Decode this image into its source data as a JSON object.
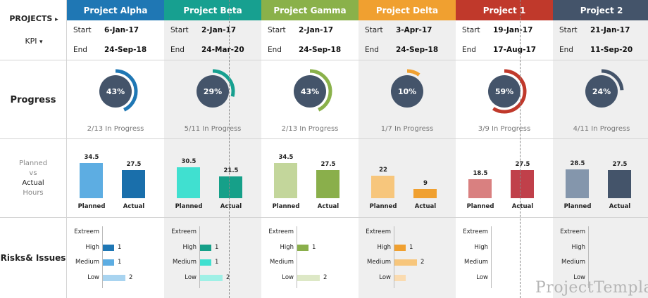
{
  "nav": {
    "projects_label": "PROJECTS",
    "projects_arrow": "▸",
    "kpi_label": "KPI",
    "kpi_arrow": "▾"
  },
  "rows": {
    "progress": "Progress",
    "hours": {
      "planned": "Planned",
      "vs": "vs",
      "actual": "Actual",
      "hours": "Hours"
    },
    "risks": "Risks& Issues"
  },
  "date_labels": {
    "start": "Start",
    "end": "End"
  },
  "bar_labels": {
    "planned": "Planned",
    "actual": "Actual"
  },
  "risk_levels": [
    "Extreem",
    "High",
    "Medium",
    "Low"
  ],
  "projects": [
    {
      "name": "Project Alpha",
      "color": "#1f77b4",
      "light": "#5dade2",
      "dark": "#1a6fab",
      "start": "6-Jan-17",
      "end": "24-Sep-18",
      "percent": 0.43,
      "percent_label": "43%",
      "progress_text": "2/13 In Progress",
      "planned": 34.5,
      "planned_label": "34.5",
      "actual": 27.5,
      "actual_label": "27.5",
      "risks": [
        null,
        1,
        1,
        2
      ],
      "risk_labels": [
        "",
        "1",
        "1",
        "2"
      ],
      "risk_colors": [
        "#1f77b4",
        "#1f77b4",
        "#5dade2",
        "#a9d4f0"
      ]
    },
    {
      "name": "Project Beta",
      "color": "#17a090",
      "light": "#40e0d0",
      "dark": "#16a089",
      "start": "2-Jan-17",
      "end": "24-Mar-20",
      "percent": 0.29,
      "percent_label": "29%",
      "progress_text": "5/11 In Progress",
      "planned": 30.5,
      "planned_label": "30.5",
      "actual": 21.5,
      "actual_label": "21.5",
      "risks": [
        null,
        1,
        1,
        2
      ],
      "risk_labels": [
        "",
        "1",
        "1",
        "2"
      ],
      "risk_colors": [
        "#16a089",
        "#16a089",
        "#40e0d0",
        "#9ff0e6"
      ]
    },
    {
      "name": "Project Gamma",
      "color": "#8ab14a",
      "light": "#c3d69b",
      "dark": "#8aaf4b",
      "start": "2-Jan-17",
      "end": "24-Sep-18",
      "percent": 0.43,
      "percent_label": "43%",
      "progress_text": "2/13 In Progress",
      "planned": 34.5,
      "planned_label": "34.5",
      "actual": 27.5,
      "actual_label": "27.5",
      "risks": [
        null,
        1,
        null,
        2
      ],
      "risk_labels": [
        "",
        "1",
        "",
        "2"
      ],
      "risk_colors": [
        "#8aaf4b",
        "#8aaf4b",
        "#c3d69b",
        "#dde8c6"
      ]
    },
    {
      "name": "Project Delta",
      "color": "#f0a030",
      "light": "#f7c67c",
      "dark": "#f0a030",
      "start": "3-Apr-17",
      "end": "24-Sep-18",
      "percent": 0.1,
      "percent_label": "10%",
      "progress_text": "1/7 In Progress",
      "planned": 22,
      "planned_label": "22",
      "actual": 9,
      "actual_label": "9",
      "risks": [
        null,
        1,
        2,
        1
      ],
      "risk_labels": [
        "",
        "1",
        "2",
        ""
      ],
      "risk_colors": [
        "#f0a030",
        "#f0a030",
        "#f7c67c",
        "#fadbb0"
      ]
    },
    {
      "name": "Project 1",
      "color": "#c0392b",
      "light": "#d98080",
      "dark": "#c0404a",
      "start": "19-Jan-17",
      "end": "17-Aug-17",
      "percent": 0.59,
      "percent_label": "59%",
      "progress_text": "3/9 In Progress",
      "planned": 18.5,
      "planned_label": "18.5",
      "actual": 27.5,
      "actual_label": "27.5",
      "risks": [
        null,
        null,
        null,
        null
      ],
      "risk_labels": [
        "",
        "",
        "",
        ""
      ],
      "risk_colors": [
        "#c0404a",
        "#c0404a",
        "#d98080",
        "#eeb8b8"
      ]
    },
    {
      "name": "Project 2",
      "color": "#44546a",
      "light": "#8496ac",
      "dark": "#44546a",
      "start": "21-Jan-17",
      "end": "11-Sep-20",
      "percent": 0.24,
      "percent_label": "24%",
      "progress_text": "4/11 In Progress",
      "planned": 28.5,
      "planned_label": "28.5",
      "actual": 27.5,
      "actual_label": "27.5",
      "risks": [
        null,
        null,
        null,
        null
      ],
      "risk_labels": [
        "",
        "",
        "",
        ""
      ],
      "risk_colors": [
        "#44546a",
        "#44546a",
        "#8496ac",
        "#c4cdd8"
      ]
    }
  ],
  "hours_max": 34.5,
  "watermark": "ProjectTemplates"
}
